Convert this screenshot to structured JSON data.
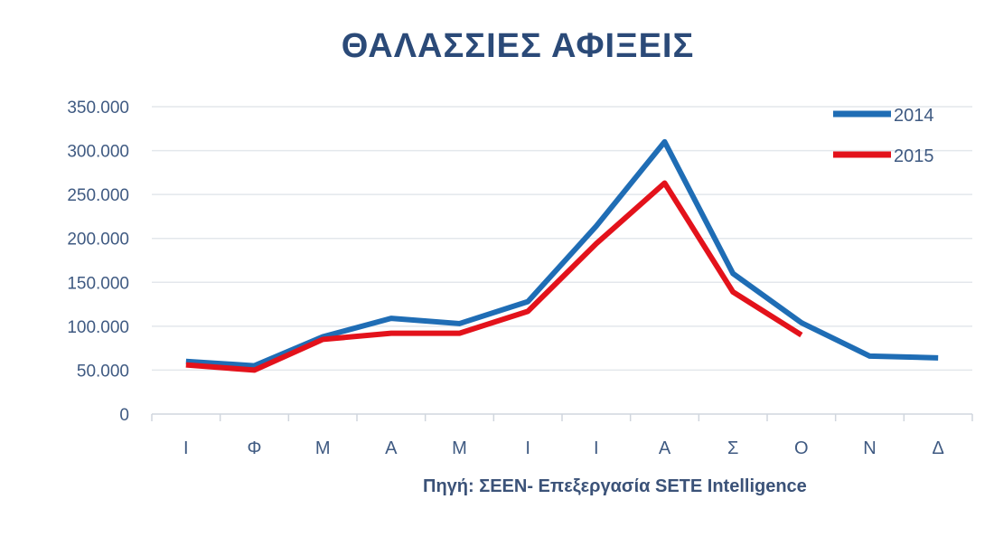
{
  "chart_data": {
    "type": "line",
    "title": "ΘΑΛΑΣΣΙΕΣ ΑΦΙΞΕΙΣ",
    "xlabel": "",
    "ylabel": "",
    "source": "Πηγή: ΣΕΕΝ- Επεξεργασία SETE Intelligence",
    "categories": [
      "Ι",
      "Φ",
      "Μ",
      "Α",
      "Μ",
      "Ι",
      "Ι",
      "Α",
      "Σ",
      "Ο",
      "Ν",
      "Δ"
    ],
    "ylim": [
      0,
      350000
    ],
    "yticks": [
      0,
      50000,
      100000,
      150000,
      200000,
      250000,
      300000,
      350000
    ],
    "ytick_labels": [
      "0",
      "50.000",
      "100.000",
      "150.000",
      "200.000",
      "250.000",
      "300.000",
      "350.000"
    ],
    "grid": true,
    "legend_position": "top-right",
    "series": [
      {
        "name": "2014",
        "color": "#1f6db5",
        "values": [
          60000,
          55000,
          88000,
          109000,
          103000,
          128000,
          214000,
          310000,
          160000,
          104000,
          66000,
          64000
        ]
      },
      {
        "name": "2015",
        "color": "#e3121b",
        "values": [
          56000,
          50000,
          85000,
          92000,
          92000,
          117000,
          194000,
          263000,
          139000,
          90000,
          null,
          null
        ]
      }
    ]
  }
}
